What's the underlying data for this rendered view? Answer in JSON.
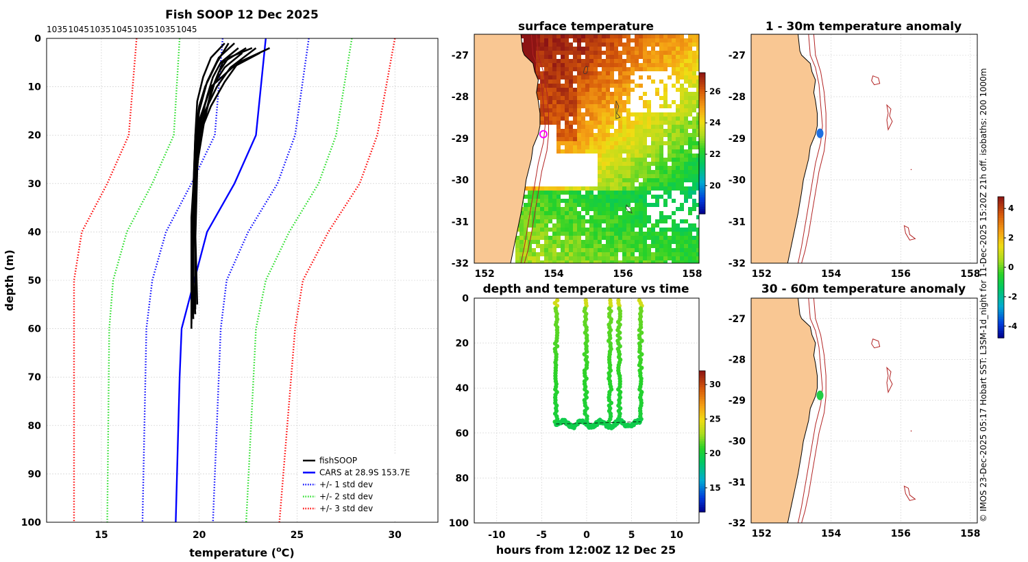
{
  "chart_data": [
    {
      "id": "profile",
      "type": "line",
      "title": "Fish SOOP 12 Dec 2025",
      "top_labels": [
        "1035",
        "1045",
        "1035",
        "1045",
        "1035",
        "1035",
        "1045"
      ],
      "xlabel_main": "temperature (",
      "xlabel_sup": "o",
      "xlabel_end": "C)",
      "ylabel": "depth (m)",
      "xlim": [
        12.2,
        32.2
      ],
      "ylim": [
        0,
        100
      ],
      "xticks": [
        15,
        20,
        25,
        30
      ],
      "yticks": [
        0,
        10,
        20,
        30,
        40,
        50,
        60,
        70,
        80,
        90,
        100
      ],
      "legend": [
        {
          "label": "fishSOOP",
          "color": "#000000",
          "style": "solid"
        },
        {
          "label": "CARS at 28.9S 153.7E",
          "color": "#0000ff",
          "style": "solid"
        },
        {
          "label": "+/- 1 std dev",
          "color": "#0000ff",
          "style": "dotted"
        },
        {
          "label": "+/- 2 std dev",
          "color": "#22dd22",
          "style": "dotted"
        },
        {
          "label": "+/- 3 std dev",
          "color": "#ff0000",
          "style": "dotted"
        }
      ],
      "cars": {
        "depth": [
          0,
          20,
          30,
          40,
          60,
          70,
          100
        ],
        "temp": [
          23.4,
          22.9,
          21.8,
          20.4,
          19.1,
          19.0,
          18.8
        ]
      },
      "std_lines": [
        {
          "color": "#0000ff",
          "depth": [
            0,
            20,
            30,
            40,
            50,
            60,
            100
          ],
          "temp": [
            25.6,
            24.9,
            24.0,
            22.5,
            21.4,
            21.1,
            20.7
          ]
        },
        {
          "color": "#0000ff",
          "depth": [
            0,
            20,
            30,
            40,
            50,
            60,
            100
          ],
          "temp": [
            21.2,
            20.8,
            19.6,
            18.3,
            17.6,
            17.3,
            17.1
          ]
        },
        {
          "color": "#22dd22",
          "depth": [
            0,
            20,
            30,
            40,
            50,
            60,
            100
          ],
          "temp": [
            27.8,
            27.0,
            26.1,
            24.6,
            23.4,
            22.9,
            22.4
          ]
        },
        {
          "color": "#22dd22",
          "depth": [
            0,
            20,
            30,
            40,
            50,
            60,
            100
          ],
          "temp": [
            19.0,
            18.7,
            17.6,
            16.3,
            15.6,
            15.4,
            15.3
          ]
        },
        {
          "color": "#ff0000",
          "depth": [
            0,
            20,
            30,
            40,
            50,
            60,
            100
          ],
          "temp": [
            30.0,
            29.1,
            28.2,
            26.6,
            25.3,
            24.9,
            24.1
          ]
        },
        {
          "color": "#ff0000",
          "depth": [
            0,
            20,
            30,
            40,
            50,
            60,
            100
          ],
          "temp": [
            16.8,
            16.4,
            15.3,
            14.0,
            13.6,
            13.6,
            13.6
          ]
        }
      ],
      "fish_profiles": [
        {
          "depth": [
            2,
            5,
            9,
            14,
            20,
            30,
            45,
            56
          ],
          "temp": [
            23.6,
            22.0,
            21.3,
            20.6,
            20.0,
            19.8,
            19.7,
            19.7
          ]
        },
        {
          "depth": [
            2,
            6,
            10,
            15,
            22,
            35,
            50,
            58
          ],
          "temp": [
            22.9,
            21.6,
            20.9,
            20.3,
            19.9,
            19.7,
            19.6,
            19.6
          ]
        },
        {
          "depth": [
            1,
            4,
            8,
            13,
            20,
            32,
            48,
            59
          ],
          "temp": [
            21.3,
            20.6,
            20.2,
            19.9,
            19.8,
            19.7,
            19.6,
            19.6
          ]
        },
        {
          "depth": [
            2,
            5,
            9,
            13,
            18,
            28,
            44,
            57
          ],
          "temp": [
            22.4,
            21.2,
            20.8,
            20.5,
            20.2,
            19.8,
            19.7,
            19.7
          ]
        },
        {
          "depth": [
            1,
            4,
            9,
            15,
            22,
            34,
            49,
            60
          ],
          "temp": [
            21.8,
            21.0,
            20.4,
            20.0,
            19.8,
            19.7,
            19.6,
            19.6
          ]
        },
        {
          "depth": [
            3,
            6,
            10,
            16,
            23,
            36,
            50,
            57
          ],
          "temp": [
            23.1,
            21.7,
            20.6,
            20.1,
            19.9,
            19.7,
            19.7,
            19.8
          ]
        },
        {
          "depth": [
            2,
            5,
            8,
            12,
            17,
            27,
            42,
            56
          ],
          "temp": [
            22.0,
            21.1,
            20.7,
            20.4,
            20.1,
            19.9,
            19.8,
            19.8
          ]
        },
        {
          "depth": [
            1,
            5,
            10,
            14,
            20,
            31,
            47,
            58
          ],
          "temp": [
            21.5,
            20.9,
            20.3,
            20.0,
            19.8,
            19.7,
            19.6,
            19.7
          ]
        },
        {
          "depth": [
            2,
            4,
            7,
            11,
            16,
            26,
            40,
            55
          ],
          "temp": [
            22.7,
            21.5,
            21.0,
            20.6,
            20.3,
            19.9,
            19.8,
            19.9
          ]
        },
        {
          "depth": [
            3,
            6,
            11,
            17,
            24,
            37,
            51,
            59
          ],
          "temp": [
            22.2,
            21.3,
            20.5,
            20.0,
            19.8,
            19.6,
            19.6,
            19.6
          ]
        }
      ]
    },
    {
      "id": "surface_map",
      "type": "heatmap",
      "title": "surface temperature",
      "xticks": [
        "152",
        "154",
        "156",
        "158"
      ],
      "yticks": [
        "-27",
        "-28",
        "-29",
        "-30",
        "-31",
        "-32"
      ],
      "xlim": [
        151.7,
        158.2
      ],
      "ylim": [
        -32,
        -26.5
      ],
      "colorbar_ticks": [
        "26",
        "24",
        "22",
        "20"
      ],
      "colorbar_range": [
        18.2,
        27.2
      ],
      "marker": {
        "lon": 153.7,
        "lat": -28.9,
        "color": "#ff00ff"
      }
    },
    {
      "id": "anomaly_1_30",
      "type": "heatmap",
      "title": "1 - 30m temperature anomaly",
      "xticks": [
        "152",
        "154",
        "156",
        "158"
      ],
      "yticks": [
        "-27",
        "-28",
        "-29",
        "-30",
        "-31",
        "-32"
      ],
      "xlim": [
        151.7,
        158.2
      ],
      "ylim": [
        -32,
        -26.5
      ],
      "marker": {
        "lon": 153.68,
        "lat": -28.88,
        "color": "#1f6fe0"
      }
    },
    {
      "id": "anomaly_30_60",
      "type": "heatmap",
      "title": "30 - 60m temperature anomaly",
      "xticks": [
        "152",
        "154",
        "156",
        "158"
      ],
      "yticks": [
        "-27",
        "-28",
        "-29",
        "-30",
        "-31",
        "-32"
      ],
      "xlim": [
        151.7,
        158.2
      ],
      "ylim": [
        -32,
        -26.5
      ],
      "marker": {
        "lon": 153.68,
        "lat": -28.88,
        "color": "#22cc44"
      }
    },
    {
      "id": "anomaly_colorbar",
      "type": "heatmap",
      "colorbar_ticks": [
        "4",
        "2",
        "0",
        "-2",
        "-4"
      ],
      "colorbar_range": [
        -4.8,
        4.8
      ]
    },
    {
      "id": "time_depth",
      "type": "scatter",
      "title": "depth and temperature vs time",
      "xlabel": "hours from 12:00Z 12 Dec 25",
      "xlim": [
        -12.5,
        12.5
      ],
      "ylim": [
        0,
        100
      ],
      "xticks": [
        "-10",
        "-5",
        "0",
        "5",
        "10"
      ],
      "yticks": [
        "0",
        "20",
        "40",
        "60",
        "80",
        "100"
      ],
      "colorbar_ticks": [
        "30",
        "25",
        "20",
        "15"
      ],
      "colorbar_range": [
        11.5,
        32.0
      ],
      "casts_hours": [
        -3.4,
        -0.1,
        2.6,
        3.6,
        6.0
      ],
      "bottom_depth": 56,
      "surface_temp": 22,
      "bottom_temp": 20
    }
  ],
  "side_text": "© IMOS 23-Dec-2025 05:17 Hobart SST: L3SM-1d_night for 11-Dec-2025 15:20Z 21h off. isobaths: 200  1000m"
}
